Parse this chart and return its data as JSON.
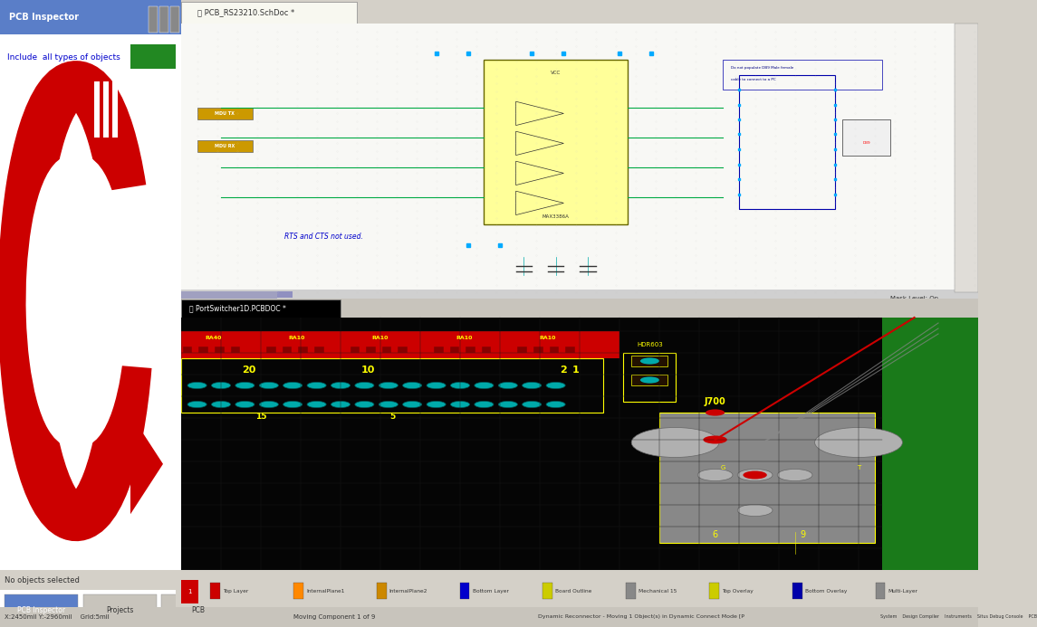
{
  "bg_color": "#f0ede8",
  "top_panel_bg": "#f5f5f0",
  "top_panel_tab_bg": "#e8e4dc",
  "bottom_panel_bg": "#000000",
  "bottom_panel_pcb_bg": "#1a1a00",
  "green_border": "#2d8a2d",
  "red_arrow_color": "#cc0000",
  "title_text": "PCB_RS23210.SchDoc *",
  "bottom_title": "PortSwitcher1D.PCBDOC *",
  "left_panel_title": "PCB Inspector",
  "left_panel_sub": "Include  all types of objects",
  "status_bar_bg": "#d4d0c8",
  "schematic_bg": "#f8f8f0",
  "tab_bar_bg": "#c8c4bc",
  "scroll_bar_color": "#a0a0d0",
  "bottom_status": "No objects selected",
  "bottom_tabs": [
    "PCB Inspector",
    "Projects",
    "PCB"
  ],
  "bottom_bar_text": "X:2450mil Y:-2960mil   Grid:5mil",
  "bottom_center_text": "Moving Component 1 of 9",
  "bottom_right_text": "Dynamic Reconnector - Moving 1 Object(s) in Dynamic Connect Mode [P",
  "layer_legend": [
    "Top Layer",
    "InternalPlane1",
    "InternalPlane2",
    "Bottom Layer",
    "Board Outline",
    "Mechanical 15",
    "Top Overlay",
    "Bottom Overlay",
    "Multi-Layer"
  ],
  "layer_colors": [
    "#cc0000",
    "#cc6600",
    "#996600",
    "#0000cc",
    "#ffff00",
    "#808080",
    "#ffff00",
    "#0000aa",
    "#808080"
  ]
}
